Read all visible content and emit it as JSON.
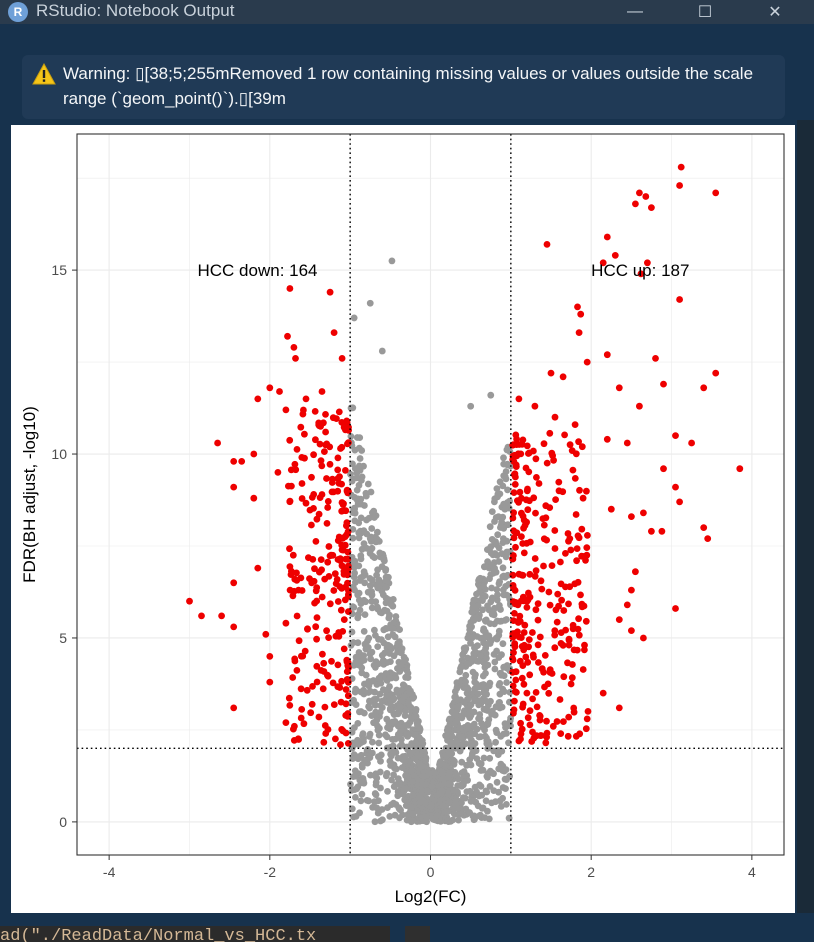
{
  "window": {
    "title": "RStudio: Notebook Output",
    "app_icon_letter": "R",
    "controls": {
      "minimize": "—",
      "maximize": "☐",
      "close": "✕"
    }
  },
  "warning": {
    "icon": "warning-icon",
    "text": "Warning: ▯[38;5;255mRemoved 1 row containing missing values or values outside the scale range (`geom_point()`).▯[39m"
  },
  "code_peek": "ad(\"./ReadData/Normal_vs_HCC.tx",
  "chart_data": {
    "type": "scatter",
    "title": "",
    "xlabel": "Log2(FC)",
    "ylabel": "FDR(BH adjust, -log10)",
    "xlim": [
      -4.4,
      4.4
    ],
    "ylim": [
      -0.9,
      18.7
    ],
    "xticks": [
      -4,
      -2,
      0,
      2,
      4
    ],
    "yticks": [
      0,
      5,
      10,
      15
    ],
    "grid": true,
    "legend": "none",
    "thresholds": {
      "fc_lines": [
        -1,
        1
      ],
      "fdr_line": 2
    },
    "annotations": [
      {
        "text": "HCC down: 164",
        "x": -2.9,
        "y": 15
      },
      {
        "text": "HCC up: 187",
        "x": 2.0,
        "y": 15
      }
    ],
    "colors": {
      "up_down": "#ee0000",
      "ns": "#999999"
    },
    "series": [
      {
        "name": "significant",
        "points": [
          [
            3.12,
            17.8
          ],
          [
            3.1,
            17.3
          ],
          [
            3.55,
            17.1
          ],
          [
            2.6,
            17.1
          ],
          [
            2.68,
            17.0
          ],
          [
            2.55,
            16.8
          ],
          [
            2.75,
            16.7
          ],
          [
            2.2,
            15.9
          ],
          [
            1.45,
            15.7
          ],
          [
            2.3,
            15.4
          ],
          [
            2.15,
            15.2
          ],
          [
            2.7,
            15.2
          ],
          [
            2.62,
            14.9
          ],
          [
            3.1,
            14.2
          ],
          [
            -1.75,
            14.5
          ],
          [
            -1.25,
            14.4
          ],
          [
            1.83,
            14.0
          ],
          [
            1.87,
            13.8
          ],
          [
            1.85,
            13.3
          ],
          [
            -1.2,
            13.3
          ],
          [
            -1.78,
            13.2
          ],
          [
            -1.7,
            12.9
          ],
          [
            -1.68,
            12.6
          ],
          [
            -1.1,
            12.6
          ],
          [
            2.2,
            12.7
          ],
          [
            1.95,
            12.5
          ],
          [
            2.8,
            12.6
          ],
          [
            3.55,
            12.2
          ],
          [
            2.9,
            11.9
          ],
          [
            1.5,
            12.2
          ],
          [
            1.65,
            12.1
          ],
          [
            2.35,
            11.8
          ],
          [
            3.4,
            11.8
          ],
          [
            -2.0,
            11.8
          ],
          [
            -1.88,
            11.7
          ],
          [
            -2.15,
            11.5
          ],
          [
            -1.8,
            11.2
          ],
          [
            -1.55,
            11.5
          ],
          [
            -1.35,
            11.7
          ],
          [
            1.1,
            11.5
          ],
          [
            1.3,
            11.3
          ],
          [
            1.55,
            11.0
          ],
          [
            1.8,
            10.8
          ],
          [
            2.6,
            11.3
          ],
          [
            3.05,
            10.5
          ],
          [
            3.25,
            10.3
          ],
          [
            2.2,
            10.4
          ],
          [
            2.45,
            10.3
          ],
          [
            2.9,
            9.6
          ],
          [
            3.85,
            9.6
          ],
          [
            -2.65,
            10.3
          ],
          [
            -2.35,
            9.8
          ],
          [
            -2.45,
            9.8
          ],
          [
            -2.2,
            10.0
          ],
          [
            -1.9,
            9.5
          ],
          [
            -1.6,
            9.2
          ],
          [
            -1.35,
            8.9
          ],
          [
            -2.45,
            9.1
          ],
          [
            -2.2,
            8.8
          ],
          [
            1.35,
            9.2
          ],
          [
            1.6,
            9.0
          ],
          [
            1.9,
            8.8
          ],
          [
            2.25,
            8.5
          ],
          [
            2.5,
            8.3
          ],
          [
            2.65,
            8.4
          ],
          [
            3.05,
            9.1
          ],
          [
            3.1,
            8.7
          ],
          [
            3.4,
            8.0
          ],
          [
            3.45,
            7.7
          ],
          [
            2.75,
            7.9
          ],
          [
            2.88,
            7.9
          ],
          [
            -2.15,
            6.9
          ],
          [
            -2.45,
            6.5
          ],
          [
            -3.0,
            6.0
          ],
          [
            -2.85,
            5.6
          ],
          [
            -2.6,
            5.6
          ],
          [
            -2.45,
            5.3
          ],
          [
            -2.05,
            5.1
          ],
          [
            -1.8,
            5.4
          ],
          [
            -2.0,
            4.5
          ],
          [
            -2.0,
            3.8
          ],
          [
            -1.8,
            2.7
          ],
          [
            -2.45,
            3.1
          ],
          [
            2.55,
            6.8
          ],
          [
            2.5,
            6.3
          ],
          [
            2.45,
            5.9
          ],
          [
            2.35,
            5.5
          ],
          [
            2.5,
            5.2
          ],
          [
            2.65,
            5.0
          ],
          [
            3.05,
            5.8
          ],
          [
            2.15,
            3.5
          ],
          [
            2.35,
            3.1
          ],
          [
            1.95,
            2.8
          ],
          [
            1.62,
            2.4
          ],
          [
            -1.12,
            2.1
          ],
          [
            -1.05,
            3.6
          ],
          [
            1.1,
            2.2
          ],
          [
            1.2,
            3.5
          ]
        ]
      }
    ]
  }
}
